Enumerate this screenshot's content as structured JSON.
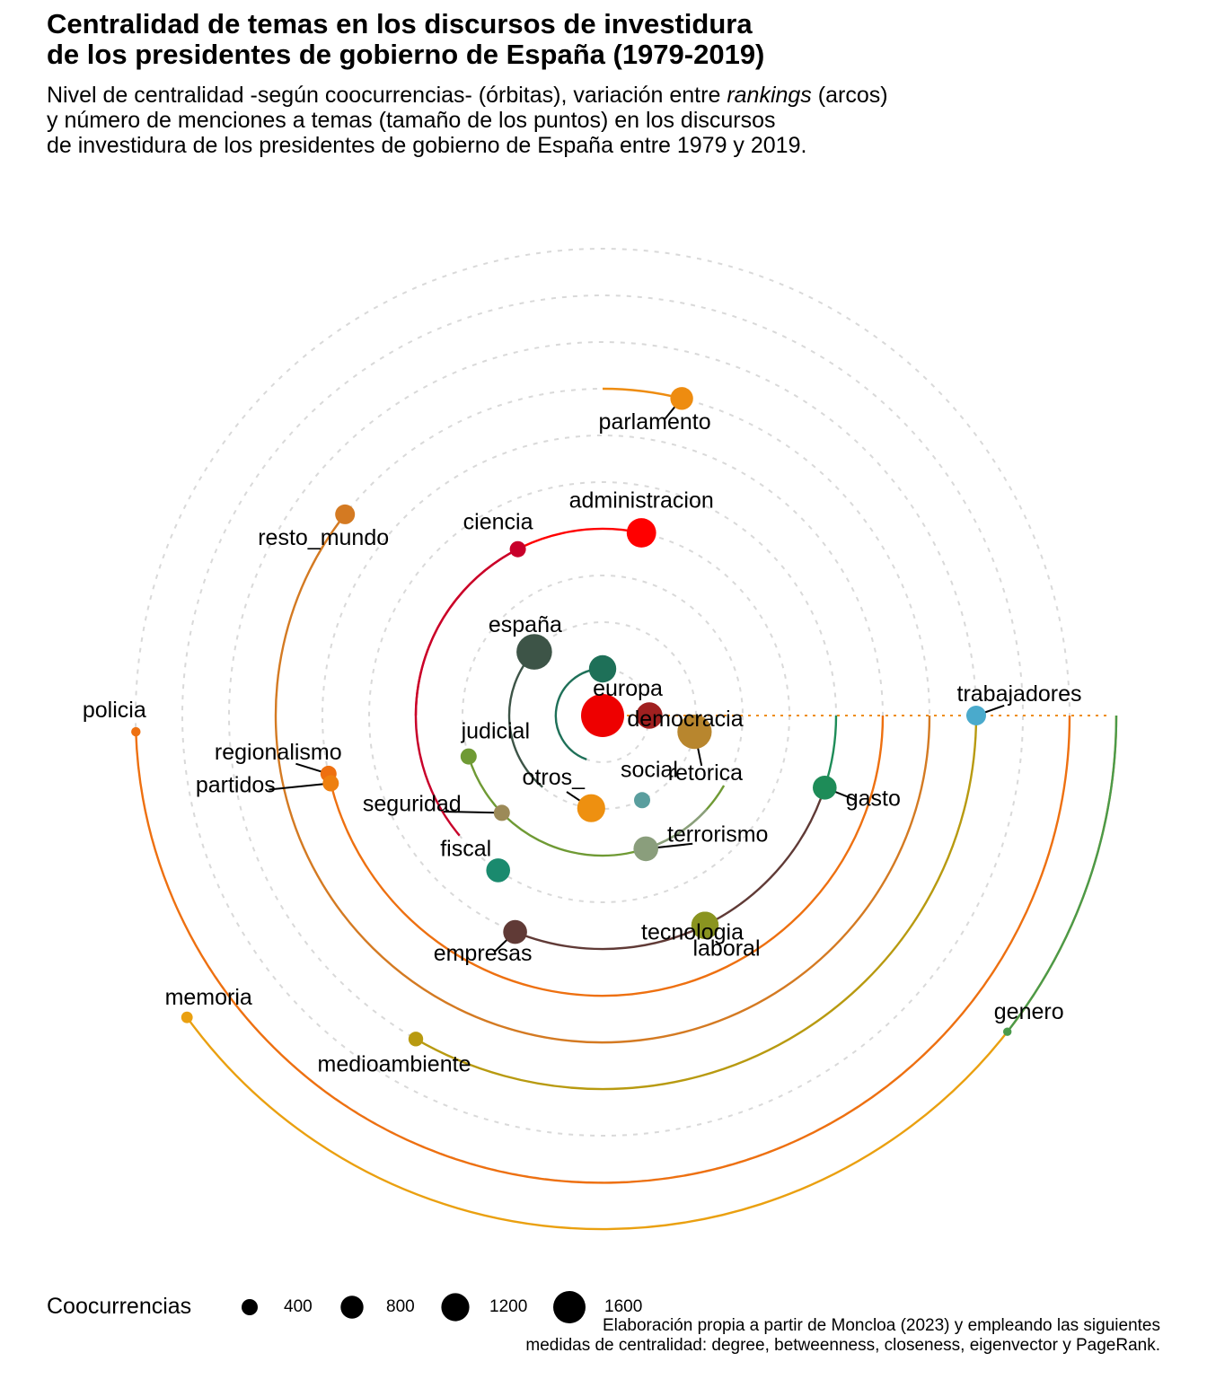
{
  "title_lines": [
    "Centralidad de temas en los discursos de investidura",
    "de los presidentes de gobierno de España (1979-2019)"
  ],
  "subtitle": {
    "line1_a": "Nivel de centralidad -según coocurrencias- (órbitas), variación entre ",
    "line1_em": "rankings",
    "line1_b": " (arcos)",
    "line2": "y número de menciones a temas (tamaño de los puntos) en los discursos",
    "line3": "de investidura de los presidentes de gobierno de España entre 1979 y 2019."
  },
  "caption_lines": [
    "Elaboración propia a partir de Moncloa (2023) y empleando las siguientes",
    "medidas de centralidad: degree, betweenness, closeness, eigenvector y PageRank."
  ],
  "legend": {
    "title": "Coocurrencias",
    "values": [
      400,
      800,
      1200,
      1600
    ],
    "labels": [
      "400",
      "800",
      "1200",
      "1600"
    ]
  },
  "chart_data": {
    "type": "scatter",
    "coordinate_system": "polar (orbits by centrality rank, angle in degrees counter-clockwise from right)",
    "orbit_count": 14,
    "topics": [
      {
        "name": "administracion",
        "orbit": 4,
        "angle": 78,
        "size": 1000,
        "color": "#ff0000",
        "arc_to": 180
      },
      {
        "name": "ciencia",
        "orbit": 4,
        "angle": 117,
        "size": 300,
        "color": "#c8002a",
        "arc_to": 220
      },
      {
        "name": "españa",
        "orbit": 2,
        "angle": 137,
        "size": 1450,
        "color": "#3d5447",
        "arc_to": 230
      },
      {
        "name": "europa",
        "orbit": 1,
        "angle": 90,
        "size": 850,
        "color": "#1e7058",
        "arc_to": 250
      },
      {
        "name": "democracia",
        "orbit": 1,
        "angle": 0,
        "size": 800,
        "color": "#a02020",
        "arc_to": 0
      },
      {
        "name": "retorica",
        "orbit": 2,
        "angle": -10,
        "size": 1350,
        "color": "#b8862e",
        "arc_to": -10
      },
      {
        "name": "judicial",
        "orbit": 3,
        "angle": 197,
        "size": 300,
        "color": "#6f9a34",
        "arc_to": 330
      },
      {
        "name": "social",
        "orbit": 2,
        "angle": 295,
        "size": 300,
        "color": "#5a9e9e",
        "arc_to": 295
      },
      {
        "name": "otros_",
        "orbit": 2,
        "angle": 263,
        "size": 900,
        "color": "#ee9010",
        "arc_to": 263
      },
      {
        "name": "seguridad",
        "orbit": 3,
        "angle": 224,
        "size": 300,
        "color": "#9c8a58",
        "arc_to": 224
      },
      {
        "name": "terrorismo",
        "orbit": 3,
        "angle": 288,
        "size": 700,
        "color": "#8a9e7c",
        "arc_to": 318
      },
      {
        "name": "gasto",
        "orbit": 5,
        "angle": -18,
        "size": 650,
        "color": "#1e8c58",
        "arc_to": 0
      },
      {
        "name": "fiscal",
        "orbit": 4,
        "angle": 236,
        "size": 650,
        "color": "#1a8a6e",
        "arc_to": 236
      },
      {
        "name": "tecnologia",
        "orbit": 5,
        "angle": 296,
        "size": 850,
        "color": "#8a9420",
        "arc_to": 296
      },
      {
        "name": "empresas",
        "orbit": 5,
        "angle": 248,
        "size": 650,
        "color": "#603a36",
        "arc_to": 340
      },
      {
        "name": "laboral",
        "orbit": 5,
        "angle": 296,
        "size": 850,
        "color": "#8a9420",
        "arc_to": 296
      },
      {
        "name": "regionalismo",
        "orbit": 6,
        "angle": 192,
        "size": 300,
        "color": "#ee7010",
        "arc_to": 360
      },
      {
        "name": "partidos",
        "orbit": 6,
        "angle": 194,
        "size": 300,
        "color": "#ee8010",
        "arc_to": 194
      },
      {
        "name": "resto_mundo",
        "orbit": 7,
        "angle": 142,
        "size": 450,
        "color": "#d47a22",
        "arc_to": 360
      },
      {
        "name": "parlamento",
        "orbit": 7,
        "angle": 76,
        "size": 600,
        "color": "#ee8c10",
        "arc_to": 90
      },
      {
        "name": "medioambiente",
        "orbit": 8,
        "angle": 240,
        "size": 250,
        "color": "#b89a10",
        "arc_to": 360
      },
      {
        "name": "trabajadores",
        "orbit": 8,
        "angle": 0,
        "size": 450,
        "color": "#4aaacc",
        "arc_to": 360
      },
      {
        "name": "policia",
        "orbit": 10,
        "angle": 182,
        "size": 100,
        "color": "#ee7010",
        "arc_to": 360
      },
      {
        "name": "memoria",
        "orbit": 11,
        "angle": 216,
        "size": 150,
        "color": "#eaa010",
        "arc_to": 360
      },
      {
        "name": "genero",
        "orbit": 11,
        "angle": 322,
        "size": 80,
        "color": "#4a9a4a",
        "arc_to": 360
      }
    ]
  }
}
